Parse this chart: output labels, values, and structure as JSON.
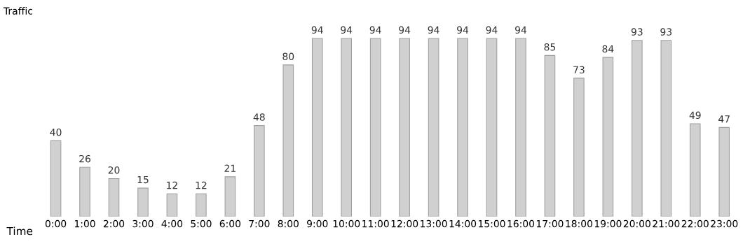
{
  "chart_data": {
    "type": "bar",
    "xlabel": "Time",
    "ylabel": "Traffic",
    "categories": [
      "0:00",
      "1:00",
      "2:00",
      "3:00",
      "4:00",
      "5:00",
      "6:00",
      "7:00",
      "8:00",
      "9:00",
      "10:00",
      "11:00",
      "12:00",
      "13:00",
      "14:00",
      "15:00",
      "16:00",
      "17:00",
      "18:00",
      "19:00",
      "20:00",
      "21:00",
      "22:00",
      "23:00"
    ],
    "values": [
      40,
      26,
      20,
      15,
      12,
      12,
      21,
      48,
      80,
      94,
      94,
      94,
      94,
      94,
      94,
      94,
      94,
      85,
      73,
      84,
      93,
      93,
      49,
      47
    ],
    "color": "#d0d0d0",
    "tick_labels": "x",
    "data_labels": true
  }
}
